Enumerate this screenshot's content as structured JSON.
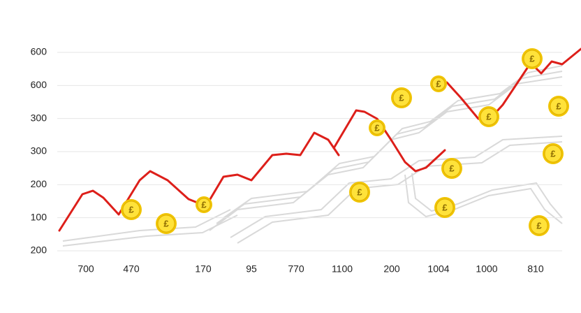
{
  "y_axis_labels": [
    "600",
    "600",
    "300",
    "300",
    "200",
    "100",
    "200"
  ],
  "x_axis_labels": [
    "700",
    "470",
    "170",
    "95",
    "770",
    "1100",
    "200",
    "1004",
    "1000",
    "810"
  ],
  "coin_symbol": "£"
}
